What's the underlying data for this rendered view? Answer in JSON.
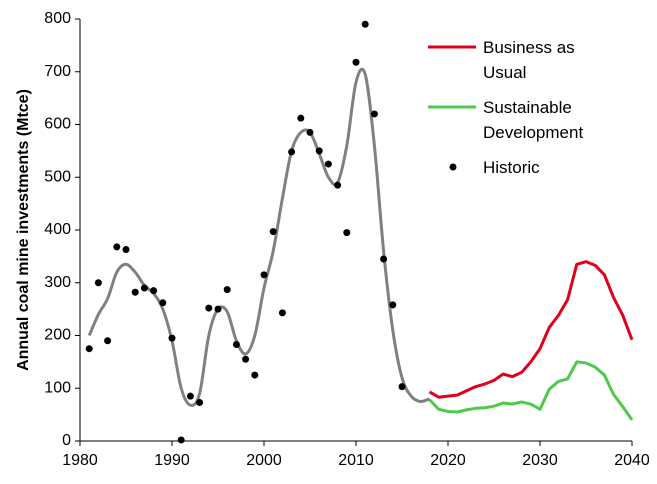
{
  "chart_data": {
    "type": "line",
    "y_label": "Annual coal mine investments (Mtce)",
    "xlim": [
      1980,
      2040
    ],
    "xticks": [
      1980,
      1990,
      2000,
      2010,
      2020,
      2030,
      2040
    ],
    "ylim": [
      0,
      800
    ],
    "yticks": [
      0,
      100,
      200,
      300,
      400,
      500,
      600,
      700,
      800
    ],
    "series": [
      {
        "name": "Business as Usual",
        "color": "#e0001b",
        "style": "line",
        "x": [
          2018,
          2019,
          2020,
          2021,
          2022,
          2023,
          2024,
          2025,
          2026,
          2027,
          2028,
          2029,
          2030,
          2031,
          2032,
          2033,
          2034,
          2035,
          2036,
          2037,
          2038,
          2039,
          2040
        ],
        "values": [
          93,
          83,
          85,
          87,
          95,
          103,
          108,
          115,
          127,
          122,
          130,
          150,
          175,
          215,
          238,
          268,
          335,
          340,
          333,
          315,
          272,
          238,
          192
        ]
      },
      {
        "name": "Sustainable Development",
        "color": "#4ec94b",
        "style": "line",
        "x": [
          2018,
          2019,
          2020,
          2021,
          2022,
          2023,
          2024,
          2025,
          2026,
          2027,
          2028,
          2029,
          2030,
          2031,
          2032,
          2033,
          2034,
          2035,
          2036,
          2037,
          2038,
          2039,
          2040
        ],
        "values": [
          78,
          60,
          56,
          55,
          59,
          62,
          63,
          66,
          72,
          70,
          74,
          70,
          60,
          98,
          113,
          118,
          150,
          148,
          140,
          125,
          88,
          65,
          40
        ]
      },
      {
        "name": "Historic",
        "color": "#000000",
        "style": "scatter",
        "x": [
          1981,
          1982,
          1983,
          1984,
          1985,
          1986,
          1987,
          1988,
          1989,
          1990,
          1991,
          1992,
          1993,
          1994,
          1995,
          1996,
          1997,
          1998,
          1999,
          2000,
          2001,
          2002,
          2003,
          2004,
          2005,
          2006,
          2007,
          2008,
          2009,
          2010,
          2011,
          2012,
          2013,
          2014,
          2015
        ],
        "values": [
          175,
          300,
          190,
          368,
          363,
          282,
          290,
          285,
          262,
          195,
          2,
          85,
          73,
          252,
          250,
          287,
          183,
          155,
          125,
          315,
          397,
          243,
          548,
          612,
          585,
          550,
          525,
          485,
          395,
          718,
          790,
          620,
          345,
          258,
          103
        ]
      },
      {
        "color": "#808080",
        "style": "smooth",
        "x": [
          1981,
          1982,
          1983,
          1984,
          1985,
          1986,
          1987,
          1988,
          1989,
          1990,
          1991,
          1992,
          1993,
          1994,
          1995,
          1996,
          1997,
          1998,
          1999,
          2000,
          2001,
          2002,
          2003,
          2004,
          2005,
          2006,
          2007,
          2008,
          2009,
          2010,
          2011,
          2012,
          2013,
          2014,
          2015,
          2016,
          2017,
          2018
        ],
        "values": [
          200,
          240,
          270,
          320,
          335,
          320,
          295,
          280,
          250,
          190,
          100,
          68,
          90,
          200,
          250,
          245,
          190,
          165,
          200,
          290,
          360,
          460,
          550,
          585,
          585,
          545,
          500,
          490,
          560,
          680,
          695,
          560,
          360,
          210,
          120,
          85,
          75,
          80
        ]
      }
    ]
  }
}
